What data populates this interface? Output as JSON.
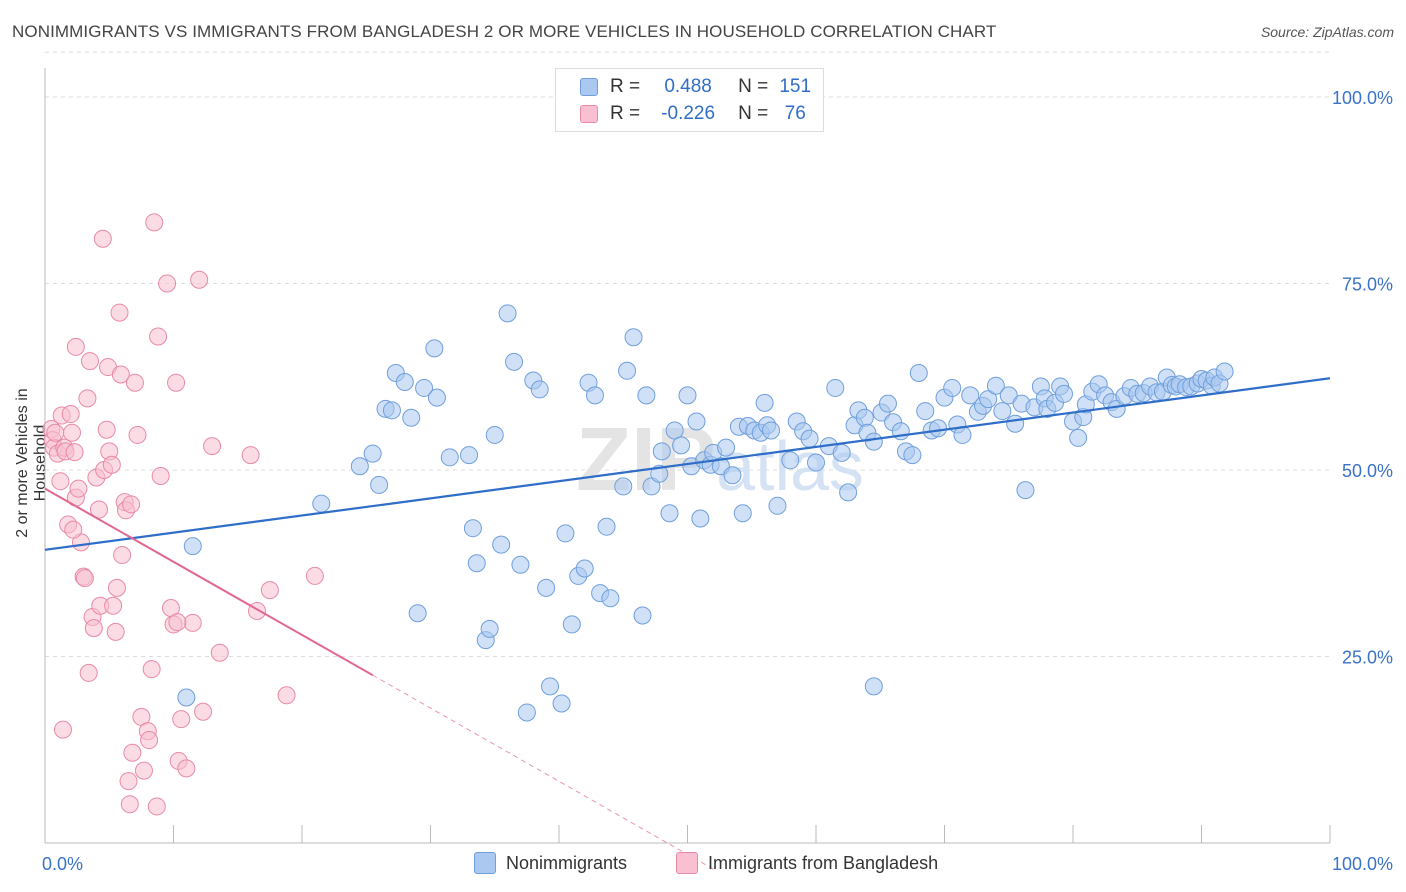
{
  "title": "NONIMMIGRANTS VS IMMIGRANTS FROM BANGLADESH 2 OR MORE VEHICLES IN HOUSEHOLD CORRELATION CHART",
  "source": "Source: ZipAtlas.com",
  "watermark": "ZIPatlas",
  "legend": {
    "rows": [
      {
        "r_label": "R =",
        "r_value": "0.488",
        "n_label": "N =",
        "n_value": "151"
      },
      {
        "r_label": "R =",
        "r_value": "-0.226",
        "n_label": "N =",
        "n_value": "76"
      }
    ]
  },
  "bottom_legend": [
    "Nonimmigrants",
    "Immigrants from Bangladesh"
  ],
  "colors": {
    "blue_fill": "#aac8f0",
    "blue_stroke": "#6f9fdc",
    "blue_line": "#2f6ec8",
    "pink_fill": "#f8c0d0",
    "pink_stroke": "#e88aa6",
    "pink_line": "#e06890",
    "axis_text": "#3a72c8"
  },
  "chart_data": {
    "type": "scatter",
    "title": "NONIMMIGRANTS VS IMMIGRANTS FROM BANGLADESH 2 OR MORE VEHICLES IN HOUSEHOLD CORRELATION CHART",
    "xlabel": "",
    "ylabel": "2 or more Vehicles in Household",
    "xlim": [
      0,
      100
    ],
    "ylim": [
      0,
      100
    ],
    "x_tick_labels": [
      "0.0%",
      "100.0%"
    ],
    "y_tick_labels": [
      "100.0%",
      "75.0%",
      "50.0%",
      "25.0%"
    ],
    "y_ticks": [
      100,
      75,
      50,
      25
    ],
    "grid": true,
    "legend_position": "top-center",
    "series": [
      {
        "name": "Nonimmigrants",
        "r": 0.488,
        "n": 151,
        "trend": {
          "x": [
            0,
            100
          ],
          "y": [
            39.3,
            62.3
          ]
        },
        "points": [
          [
            11.5,
            39.8
          ],
          [
            11,
            19.5
          ],
          [
            21.5,
            45.5
          ],
          [
            26,
            48
          ],
          [
            24.5,
            50.5
          ],
          [
            25.5,
            52.2
          ],
          [
            26.5,
            58.2
          ],
          [
            27.3,
            63
          ],
          [
            27,
            58
          ],
          [
            28,
            61.8
          ],
          [
            28.5,
            57
          ],
          [
            29.5,
            61
          ],
          [
            30.5,
            59.7
          ],
          [
            30.3,
            66.3
          ],
          [
            29,
            30.8
          ],
          [
            31.5,
            51.7
          ],
          [
            33,
            52
          ],
          [
            33.3,
            42.2
          ],
          [
            33.6,
            37.5
          ],
          [
            34.3,
            27.2
          ],
          [
            34.6,
            28.7
          ],
          [
            35,
            54.7
          ],
          [
            35.5,
            40
          ],
          [
            36,
            71
          ],
          [
            36.5,
            64.5
          ],
          [
            37,
            37.3
          ],
          [
            37.5,
            17.5
          ],
          [
            38,
            62
          ],
          [
            38.5,
            60.8
          ],
          [
            39,
            34.2
          ],
          [
            39.3,
            21
          ],
          [
            40.2,
            18.7
          ],
          [
            40.5,
            41.5
          ],
          [
            41,
            29.3
          ],
          [
            41.5,
            35.8
          ],
          [
            42,
            36.8
          ],
          [
            42.3,
            61.7
          ],
          [
            42.8,
            60
          ],
          [
            43.2,
            33.5
          ],
          [
            43.7,
            42.4
          ],
          [
            44,
            32.8
          ],
          [
            45,
            47.8
          ],
          [
            45.3,
            63.3
          ],
          [
            45.8,
            67.8
          ],
          [
            46.5,
            30.5
          ],
          [
            46.8,
            60
          ],
          [
            47.2,
            47.8
          ],
          [
            47.8,
            49.5
          ],
          [
            48,
            52.5
          ],
          [
            48.6,
            44.2
          ],
          [
            49,
            55.3
          ],
          [
            49.5,
            53.3
          ],
          [
            50,
            60
          ],
          [
            50.3,
            50.5
          ],
          [
            50.7,
            56.5
          ],
          [
            51,
            43.5
          ],
          [
            51.3,
            51.3
          ],
          [
            51.8,
            50.7
          ],
          [
            52,
            52.3
          ],
          [
            52.6,
            50.5
          ],
          [
            53,
            53
          ],
          [
            53.5,
            49.3
          ],
          [
            54,
            55.8
          ],
          [
            54.3,
            44.2
          ],
          [
            54.7,
            55.9
          ],
          [
            55.2,
            55.3
          ],
          [
            55.7,
            55
          ],
          [
            56,
            59
          ],
          [
            56.2,
            56
          ],
          [
            56.5,
            55.3
          ],
          [
            57,
            45.2
          ],
          [
            58,
            51.3
          ],
          [
            58.5,
            56.5
          ],
          [
            59,
            55.2
          ],
          [
            59.5,
            54.2
          ],
          [
            60,
            51
          ],
          [
            61,
            53.2
          ],
          [
            61.5,
            61
          ],
          [
            62,
            52.3
          ],
          [
            62.5,
            47
          ],
          [
            63,
            56
          ],
          [
            63.3,
            58
          ],
          [
            63.8,
            57
          ],
          [
            64,
            55
          ],
          [
            64.5,
            53.8
          ],
          [
            65.1,
            57.7
          ],
          [
            65.6,
            58.9
          ],
          [
            66,
            56.4
          ],
          [
            66.6,
            55.2
          ],
          [
            67,
            52.5
          ],
          [
            67.5,
            52
          ],
          [
            68,
            63
          ],
          [
            68.5,
            57.9
          ],
          [
            69,
            55.3
          ],
          [
            69.5,
            55.6
          ],
          [
            70,
            59.7
          ],
          [
            70.6,
            61
          ],
          [
            71,
            56.1
          ],
          [
            71.4,
            54.7
          ],
          [
            72,
            60
          ],
          [
            72.6,
            57.8
          ],
          [
            73,
            58.6
          ],
          [
            73.4,
            59.5
          ],
          [
            74,
            61.3
          ],
          [
            74.5,
            57.9
          ],
          [
            75,
            60
          ],
          [
            75.5,
            56.2
          ],
          [
            76,
            58.9
          ],
          [
            76.3,
            47.3
          ],
          [
            77,
            58.4
          ],
          [
            77.5,
            61.2
          ],
          [
            77.8,
            59.6
          ],
          [
            78,
            58.2
          ],
          [
            78.6,
            59
          ],
          [
            79,
            61.2
          ],
          [
            79.3,
            60.2
          ],
          [
            80,
            56.5
          ],
          [
            80.4,
            54.3
          ],
          [
            80.8,
            57.1
          ],
          [
            81,
            58.8
          ],
          [
            81.5,
            60.5
          ],
          [
            82,
            61.5
          ],
          [
            82.5,
            60
          ],
          [
            83,
            59.1
          ],
          [
            83.4,
            58.2
          ],
          [
            84,
            59.9
          ],
          [
            84.5,
            61
          ],
          [
            85,
            60.2
          ],
          [
            85.5,
            60.3
          ],
          [
            86,
            61.2
          ],
          [
            86.5,
            60.4
          ],
          [
            87,
            60.5
          ],
          [
            87.3,
            62.4
          ],
          [
            87.7,
            61.4
          ],
          [
            88,
            61.2
          ],
          [
            88.3,
            61.5
          ],
          [
            88.8,
            61.1
          ],
          [
            89.2,
            61.2
          ],
          [
            89.7,
            61.6
          ],
          [
            90,
            62.2
          ],
          [
            90.4,
            62
          ],
          [
            90.8,
            61.3
          ],
          [
            91,
            62.4
          ],
          [
            91.4,
            61.6
          ],
          [
            91.8,
            63.2
          ],
          [
            64.5,
            21
          ]
        ]
      },
      {
        "name": "Immigrants from Bangladesh",
        "r": -0.226,
        "n": 76,
        "trend": {
          "x": [
            0,
            25.5
          ],
          "y": [
            47.5,
            22.5
          ]
        },
        "trend_extension": {
          "x": [
            25.5,
            52
          ],
          "y": [
            22.5,
            -3.5
          ]
        },
        "points": [
          [
            0.5,
            55.5
          ],
          [
            0.6,
            54
          ],
          [
            0.7,
            53
          ],
          [
            0.8,
            55
          ],
          [
            1,
            52.2
          ],
          [
            1.2,
            48.5
          ],
          [
            1.3,
            57.3
          ],
          [
            1.5,
            53
          ],
          [
            1.6,
            52.5
          ],
          [
            1.8,
            42.7
          ],
          [
            2,
            57.5
          ],
          [
            2.1,
            55
          ],
          [
            2.3,
            52.4
          ],
          [
            2.4,
            46.3
          ],
          [
            2.6,
            47.5
          ],
          [
            2.8,
            40.3
          ],
          [
            3,
            35.7
          ],
          [
            3.1,
            35.5
          ],
          [
            3.3,
            59.6
          ],
          [
            3.4,
            22.8
          ],
          [
            3.5,
            64.6
          ],
          [
            3.7,
            30.3
          ],
          [
            3.8,
            28.8
          ],
          [
            4,
            49
          ],
          [
            4.2,
            44.7
          ],
          [
            4.3,
            31.8
          ],
          [
            4.5,
            81
          ],
          [
            4.6,
            50
          ],
          [
            4.8,
            55.4
          ],
          [
            4.9,
            63.8
          ],
          [
            5,
            52.5
          ],
          [
            5.2,
            50.7
          ],
          [
            5.3,
            31.8
          ],
          [
            5.5,
            28.3
          ],
          [
            5.6,
            34.2
          ],
          [
            5.8,
            71.1
          ],
          [
            5.9,
            62.8
          ],
          [
            6,
            38.6
          ],
          [
            6.2,
            45.7
          ],
          [
            6.3,
            44.6
          ],
          [
            6.5,
            8.3
          ],
          [
            6.6,
            5.2
          ],
          [
            6.8,
            12.1
          ],
          [
            7,
            61.7
          ],
          [
            7.2,
            54.7
          ],
          [
            7.5,
            16.9
          ],
          [
            7.7,
            9.7
          ],
          [
            8,
            15
          ],
          [
            8.1,
            13.8
          ],
          [
            8.3,
            23.3
          ],
          [
            8.5,
            83.2
          ],
          [
            8.7,
            4.9
          ],
          [
            8.8,
            67.9
          ],
          [
            9,
            49.2
          ],
          [
            9.5,
            75
          ],
          [
            9.8,
            31.5
          ],
          [
            10,
            29.3
          ],
          [
            10.2,
            61.7
          ],
          [
            10.4,
            11
          ],
          [
            10.6,
            16.6
          ],
          [
            11,
            10
          ],
          [
            11.5,
            29.5
          ],
          [
            12,
            75.5
          ],
          [
            12.3,
            17.6
          ],
          [
            13,
            53.2
          ],
          [
            13.6,
            25.5
          ],
          [
            16,
            52
          ],
          [
            16.5,
            31.1
          ],
          [
            17.5,
            33.9
          ],
          [
            18.8,
            19.8
          ],
          [
            21,
            35.8
          ],
          [
            2.4,
            66.5
          ],
          [
            1.4,
            15.2
          ],
          [
            6.7,
            45.4
          ],
          [
            10.3,
            29.6
          ],
          [
            2.2,
            42
          ]
        ]
      }
    ]
  }
}
